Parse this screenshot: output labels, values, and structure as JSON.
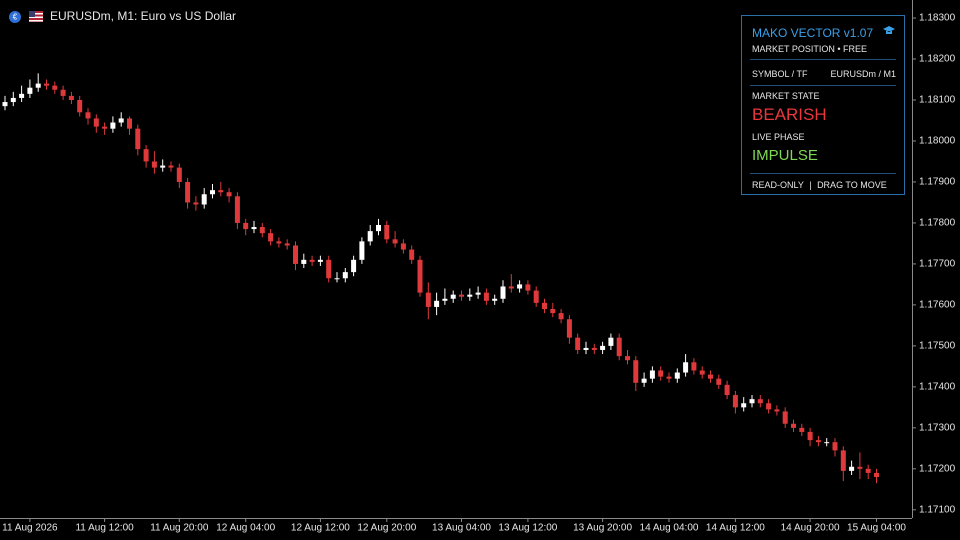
{
  "header": {
    "symbol_title": "EURUSDm, M1:  Euro vs US Dollar"
  },
  "panel": {
    "title": "MAKO VECTOR v1.07",
    "subtitle": "MARKET POSITION • FREE",
    "symbol_label": "SYMBOL / TF",
    "symbol_value": "EURUSDm / M1",
    "state_label": "MARKET STATE",
    "state_value": "BEARISH",
    "phase_label": "LIVE PHASE",
    "phase_value": "IMPULSE",
    "footer_left": "READ-ONLY",
    "footer_sep": "|",
    "footer_right": "DRAG TO MOVE"
  },
  "chart_data": {
    "type": "candlestick",
    "up_color": "#ffffff",
    "down_color": "#e0393b",
    "categories": [
      null,
      null,
      null,
      "11 Aug 2026",
      null,
      null,
      null,
      null,
      null,
      null,
      null,
      null,
      "11 Aug 12:00",
      null,
      null,
      null,
      null,
      null,
      null,
      null,
      null,
      "11 Aug 20:00",
      null,
      null,
      null,
      null,
      null,
      null,
      null,
      "12 Aug 04:00",
      null,
      null,
      null,
      null,
      null,
      null,
      null,
      null,
      "12 Aug 12:00",
      null,
      null,
      null,
      null,
      null,
      null,
      null,
      "12 Aug 20:00",
      null,
      null,
      null,
      null,
      null,
      null,
      null,
      null,
      "13 Aug 04:00",
      null,
      null,
      null,
      null,
      null,
      null,
      null,
      "13 Aug 12:00",
      null,
      null,
      null,
      null,
      null,
      null,
      null,
      null,
      "13 Aug 20:00",
      null,
      null,
      null,
      null,
      null,
      null,
      null,
      "14 Aug 04:00",
      null,
      null,
      null,
      null,
      null,
      null,
      null,
      "14 Aug 12:00",
      null,
      null,
      null,
      null,
      null,
      null,
      null,
      null,
      "14 Aug 20:00",
      null,
      null,
      null,
      null,
      null,
      null,
      null,
      "15 Aug 04:00"
    ],
    "open": [
      1.18085,
      1.18095,
      1.18105,
      1.18115,
      1.1813,
      1.1814,
      1.18135,
      1.18125,
      1.1811,
      1.181,
      1.1807,
      1.18055,
      1.18035,
      1.1803,
      1.18045,
      1.18055,
      1.1803,
      1.1798,
      1.1795,
      1.17935,
      1.1794,
      1.17935,
      1.179,
      1.1785,
      1.17845,
      1.1787,
      1.1788,
      1.17875,
      1.17865,
      1.178,
      1.17785,
      1.1779,
      1.17775,
      1.17755,
      1.1775,
      1.17745,
      1.177,
      1.1771,
      1.17705,
      1.1771,
      1.17665,
      1.17665,
      1.1768,
      1.1771,
      1.17755,
      1.1778,
      1.17795,
      1.1776,
      1.1775,
      1.17735,
      1.1771,
      1.1763,
      1.17595,
      1.1761,
      1.17615,
      1.17625,
      1.1762,
      1.17625,
      1.1763,
      1.1761,
      1.17615,
      1.17645,
      1.1764,
      1.1765,
      1.17635,
      1.17605,
      1.1759,
      1.1758,
      1.17565,
      1.1752,
      1.1749,
      1.17495,
      1.1749,
      1.175,
      1.1752,
      1.17475,
      1.17465,
      1.1741,
      1.1742,
      1.1744,
      1.17425,
      1.1742,
      1.17435,
      1.1746,
      1.1744,
      1.1743,
      1.1742,
      1.17405,
      1.1738,
      1.1735,
      1.1736,
      1.1737,
      1.1736,
      1.17345,
      1.1734,
      1.1731,
      1.173,
      1.1729,
      1.1727,
      1.17265,
      1.17265,
      1.17245,
      1.17195,
      1.17205,
      1.172,
      1.1719
    ],
    "high": [
      1.1811,
      1.1812,
      1.18135,
      1.1815,
      1.18165,
      1.1815,
      1.18145,
      1.18135,
      1.1812,
      1.1811,
      1.1808,
      1.18065,
      1.18045,
      1.1806,
      1.1807,
      1.1806,
      1.1804,
      1.1799,
      1.17975,
      1.17955,
      1.1795,
      1.17945,
      1.1791,
      1.17865,
      1.17885,
      1.17895,
      1.179,
      1.17885,
      1.17875,
      1.1781,
      1.17805,
      1.178,
      1.17785,
      1.17765,
      1.1776,
      1.17755,
      1.17725,
      1.1772,
      1.1772,
      1.1772,
      1.1768,
      1.1769,
      1.1772,
      1.17765,
      1.17795,
      1.1781,
      1.17805,
      1.1778,
      1.1776,
      1.17745,
      1.1772,
      1.17655,
      1.1763,
      1.1764,
      1.17635,
      1.17635,
      1.1764,
      1.17645,
      1.1764,
      1.17625,
      1.1766,
      1.17675,
      1.1766,
      1.1766,
      1.17645,
      1.17615,
      1.17605,
      1.1759,
      1.17575,
      1.1753,
      1.1751,
      1.17505,
      1.1751,
      1.1753,
      1.1753,
      1.1749,
      1.17475,
      1.17435,
      1.1745,
      1.1745,
      1.17435,
      1.17445,
      1.1748,
      1.1747,
      1.1745,
      1.1744,
      1.1743,
      1.17415,
      1.1739,
      1.17375,
      1.1738,
      1.1738,
      1.1737,
      1.17355,
      1.1735,
      1.1732,
      1.1731,
      1.173,
      1.1728,
      1.17275,
      1.17275,
      1.17255,
      1.1722,
      1.1724,
      1.1721,
      1.172
    ],
    "low": [
      1.18075,
      1.18085,
      1.18095,
      1.18105,
      1.1812,
      1.18125,
      1.18115,
      1.181,
      1.1809,
      1.1806,
      1.1804,
      1.1802,
      1.18015,
      1.1802,
      1.18035,
      1.18015,
      1.17965,
      1.17935,
      1.1792,
      1.17925,
      1.17925,
      1.17885,
      1.17835,
      1.1783,
      1.17835,
      1.1786,
      1.17865,
      1.1785,
      1.17785,
      1.1777,
      1.17775,
      1.17765,
      1.17745,
      1.1774,
      1.17735,
      1.17685,
      1.1769,
      1.17695,
      1.17695,
      1.17655,
      1.17655,
      1.17655,
      1.1767,
      1.177,
      1.17745,
      1.1777,
      1.1775,
      1.1774,
      1.17725,
      1.177,
      1.1762,
      1.17565,
      1.17575,
      1.176,
      1.17605,
      1.1761,
      1.1761,
      1.17615,
      1.176,
      1.176,
      1.17605,
      1.1763,
      1.1763,
      1.17625,
      1.17595,
      1.1758,
      1.1757,
      1.17555,
      1.17505,
      1.1748,
      1.1748,
      1.1748,
      1.1748,
      1.1749,
      1.17465,
      1.17455,
      1.1739,
      1.174,
      1.1741,
      1.17415,
      1.1741,
      1.1741,
      1.17425,
      1.1743,
      1.1742,
      1.1741,
      1.17395,
      1.1737,
      1.17335,
      1.1734,
      1.1735,
      1.1735,
      1.17335,
      1.1733,
      1.173,
      1.1729,
      1.1728,
      1.17255,
      1.17255,
      1.17255,
      1.1723,
      1.1717,
      1.17185,
      1.17175,
      1.17175,
      1.17165
    ],
    "close": [
      1.18095,
      1.18105,
      1.18115,
      1.1813,
      1.1814,
      1.18135,
      1.18125,
      1.1811,
      1.181,
      1.1807,
      1.18055,
      1.18035,
      1.1803,
      1.18045,
      1.18055,
      1.1803,
      1.1798,
      1.1795,
      1.17935,
      1.1794,
      1.17935,
      1.179,
      1.1785,
      1.17845,
      1.1787,
      1.1788,
      1.17875,
      1.17865,
      1.178,
      1.17785,
      1.1779,
      1.17775,
      1.17755,
      1.1775,
      1.17745,
      1.177,
      1.1771,
      1.17705,
      1.1771,
      1.17665,
      1.17665,
      1.1768,
      1.1771,
      1.17755,
      1.1778,
      1.17795,
      1.1776,
      1.1775,
      1.17735,
      1.1771,
      1.1763,
      1.17595,
      1.1761,
      1.17615,
      1.17625,
      1.1762,
      1.17625,
      1.1763,
      1.1761,
      1.17615,
      1.17645,
      1.1764,
      1.1765,
      1.17635,
      1.17605,
      1.1759,
      1.1758,
      1.17565,
      1.1752,
      1.1749,
      1.17495,
      1.1749,
      1.175,
      1.1752,
      1.17475,
      1.17465,
      1.1741,
      1.1742,
      1.1744,
      1.17425,
      1.1742,
      1.17435,
      1.1746,
      1.1744,
      1.1743,
      1.1742,
      1.17405,
      1.1738,
      1.1735,
      1.1736,
      1.1737,
      1.1736,
      1.17345,
      1.1734,
      1.1731,
      1.173,
      1.1729,
      1.1727,
      1.17265,
      1.17265,
      1.17245,
      1.17195,
      1.17205,
      1.172,
      1.1719,
      1.1718
    ],
    "ylim": [
      1.1708,
      1.18344
    ],
    "yticks": [
      {
        "value": 1.183,
        "label": "1.18300"
      },
      {
        "value": 1.182,
        "label": "1.18200"
      },
      {
        "value": 1.181,
        "label": "1.18100"
      },
      {
        "value": 1.18,
        "label": "1.18000"
      },
      {
        "value": 1.179,
        "label": "1.17900"
      },
      {
        "value": 1.178,
        "label": "1.17800"
      },
      {
        "value": 1.177,
        "label": "1.17700"
      },
      {
        "value": 1.176,
        "label": "1.17600"
      },
      {
        "value": 1.175,
        "label": "1.17500"
      },
      {
        "value": 1.174,
        "label": "1.17400"
      },
      {
        "value": 1.173,
        "label": "1.17300"
      },
      {
        "value": 1.172,
        "label": "1.17200"
      },
      {
        "value": 1.171,
        "label": "1.17100"
      }
    ],
    "grid": false
  }
}
